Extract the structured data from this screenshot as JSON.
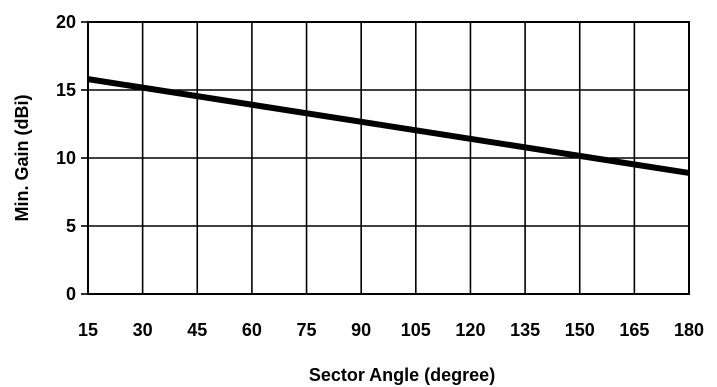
{
  "chart_data": {
    "type": "line",
    "title": "",
    "xlabel": "Sector Angle (degree)",
    "ylabel": "Min. Gain  (dBi)",
    "xlim": [
      15,
      180
    ],
    "ylim": [
      0,
      20
    ],
    "x_ticks": [
      15,
      30,
      45,
      60,
      75,
      90,
      105,
      120,
      135,
      150,
      165,
      180
    ],
    "y_ticks": [
      0,
      5,
      10,
      15,
      20
    ],
    "grid": true,
    "legend": "none",
    "series": [
      {
        "x": [
          15,
          180
        ],
        "y": [
          15.8,
          8.9
        ],
        "color": "#000000"
      }
    ]
  }
}
